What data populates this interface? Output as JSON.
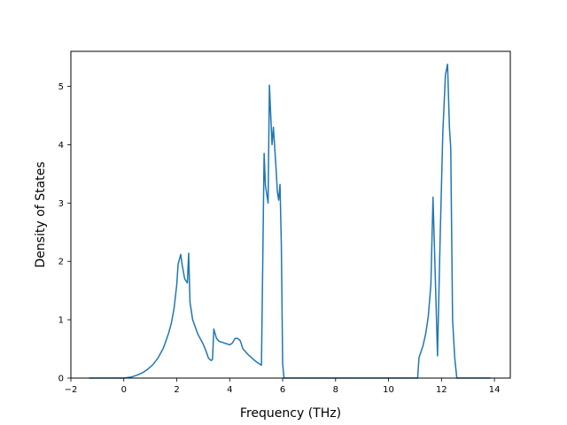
{
  "chart_data": {
    "type": "line",
    "title": "",
    "xlabel": "Frequency (THz)",
    "ylabel": "Density of States",
    "xlim": [
      -2,
      14.6
    ],
    "ylim": [
      0,
      5.6
    ],
    "x_ticks": [
      -2,
      0,
      2,
      4,
      6,
      8,
      10,
      12,
      14
    ],
    "y_ticks": [
      0,
      1,
      2,
      3,
      4,
      5
    ],
    "x_tick_labels": [
      "−2",
      "0",
      "2",
      "4",
      "6",
      "8",
      "10",
      "12",
      "14"
    ],
    "y_tick_labels": [
      "0",
      "1",
      "2",
      "3",
      "4",
      "5"
    ],
    "grid": false,
    "legend": "none",
    "series": [
      {
        "color": "#1f77b4",
        "points": [
          [
            -1.3,
            0
          ],
          [
            0.0,
            0
          ],
          [
            0.3,
            0.02
          ],
          [
            0.5,
            0.05
          ],
          [
            0.7,
            0.09
          ],
          [
            0.9,
            0.15
          ],
          [
            1.1,
            0.23
          ],
          [
            1.3,
            0.35
          ],
          [
            1.5,
            0.52
          ],
          [
            1.7,
            0.78
          ],
          [
            1.8,
            0.95
          ],
          [
            1.9,
            1.2
          ],
          [
            2.0,
            1.6
          ],
          [
            2.05,
            1.95
          ],
          [
            2.15,
            2.12
          ],
          [
            2.2,
            1.95
          ],
          [
            2.3,
            1.7
          ],
          [
            2.4,
            1.63
          ],
          [
            2.45,
            2.14
          ],
          [
            2.5,
            1.3
          ],
          [
            2.6,
            1.0
          ],
          [
            2.8,
            0.75
          ],
          [
            3.0,
            0.58
          ],
          [
            3.1,
            0.47
          ],
          [
            3.2,
            0.34
          ],
          [
            3.3,
            0.3
          ],
          [
            3.35,
            0.32
          ],
          [
            3.4,
            0.84
          ],
          [
            3.5,
            0.68
          ],
          [
            3.6,
            0.63
          ],
          [
            3.8,
            0.6
          ],
          [
            4.0,
            0.57
          ],
          [
            4.1,
            0.6
          ],
          [
            4.2,
            0.68
          ],
          [
            4.3,
            0.68
          ],
          [
            4.4,
            0.64
          ],
          [
            4.5,
            0.5
          ],
          [
            4.7,
            0.4
          ],
          [
            5.0,
            0.28
          ],
          [
            5.2,
            0.22
          ],
          [
            5.3,
            3.85
          ],
          [
            5.35,
            3.3
          ],
          [
            5.45,
            3.0
          ],
          [
            5.5,
            5.02
          ],
          [
            5.55,
            4.5
          ],
          [
            5.6,
            4.0
          ],
          [
            5.65,
            4.3
          ],
          [
            5.75,
            3.6
          ],
          [
            5.8,
            3.2
          ],
          [
            5.85,
            3.05
          ],
          [
            5.9,
            3.32
          ],
          [
            5.95,
            2.3
          ],
          [
            6.0,
            0.25
          ],
          [
            6.05,
            0
          ],
          [
            11.1,
            0
          ],
          [
            11.15,
            0.35
          ],
          [
            11.3,
            0.55
          ],
          [
            11.4,
            0.75
          ],
          [
            11.5,
            1.05
          ],
          [
            11.6,
            1.6
          ],
          [
            11.68,
            3.1
          ],
          [
            11.75,
            2.0
          ],
          [
            11.85,
            0.38
          ],
          [
            11.95,
            2.4
          ],
          [
            12.05,
            4.2
          ],
          [
            12.15,
            5.2
          ],
          [
            12.23,
            5.38
          ],
          [
            12.3,
            4.3
          ],
          [
            12.35,
            3.95
          ],
          [
            12.42,
            1.0
          ],
          [
            12.5,
            0.35
          ],
          [
            12.58,
            0
          ],
          [
            13.85,
            0
          ]
        ]
      }
    ]
  }
}
